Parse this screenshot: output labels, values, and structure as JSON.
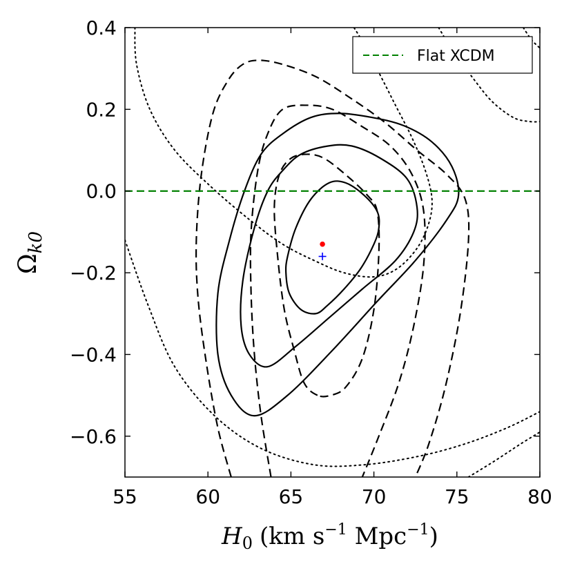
{
  "chart_data": {
    "type": "contour",
    "xlabel_main": "H",
    "xlabel_sub": "0",
    "xlabel_units": "(km s",
    "xlabel_units_exp1": "−1",
    "xlabel_units_mid": " Mpc",
    "xlabel_units_exp2": "−1",
    "xlabel_units_end": ")",
    "ylabel_main": "Ω",
    "ylabel_sub": "k0",
    "xlim": [
      55,
      80
    ],
    "ylim": [
      -0.7,
      0.4
    ],
    "xticks": [
      55,
      60,
      65,
      70,
      75,
      80
    ],
    "xtick_labels": [
      "55",
      "60",
      "65",
      "70",
      "75",
      "80"
    ],
    "yticks": [
      0.4,
      0.2,
      0.0,
      -0.2,
      -0.4,
      -0.6
    ],
    "ytick_labels": [
      "0.4",
      "0.2",
      "0.0",
      "−0.2",
      "−0.4",
      "−0.6"
    ],
    "legend": {
      "label": "Flat XCDM",
      "placement": "top-right",
      "color": "#008000"
    },
    "flat_line": {
      "y": 0.0,
      "color": "#008000",
      "style": "dashed"
    },
    "best_fit_points": [
      {
        "name": "red-dot",
        "x": 66.9,
        "y": -0.13,
        "color": "#ff0000",
        "marker": "dot"
      },
      {
        "name": "blue-plus",
        "x": 66.9,
        "y": -0.16,
        "color": "#0000ff",
        "marker": "plus"
      }
    ],
    "contours": [
      {
        "name": "solid-1sigma",
        "style": "solid",
        "closed": true,
        "points": [
          [
            66.5,
            -0.3
          ],
          [
            65.6,
            -0.29
          ],
          [
            64.9,
            -0.25
          ],
          [
            64.7,
            -0.2
          ],
          [
            64.8,
            -0.16
          ],
          [
            65.3,
            -0.09
          ],
          [
            66.2,
            -0.02
          ],
          [
            67.3,
            0.02
          ],
          [
            68.3,
            0.02
          ],
          [
            69.4,
            -0.01
          ],
          [
            70.2,
            -0.05
          ],
          [
            70.3,
            -0.09
          ],
          [
            70.0,
            -0.13
          ],
          [
            69.2,
            -0.19
          ],
          [
            68.2,
            -0.24
          ],
          [
            67.2,
            -0.28
          ]
        ]
      },
      {
        "name": "solid-2sigma",
        "style": "solid",
        "closed": true,
        "points": [
          [
            63.6,
            -0.43
          ],
          [
            62.5,
            -0.4
          ],
          [
            62.0,
            -0.33
          ],
          [
            62.1,
            -0.22
          ],
          [
            62.8,
            -0.09
          ],
          [
            63.6,
            0.0
          ],
          [
            64.5,
            0.05
          ],
          [
            65.6,
            0.09
          ],
          [
            67.2,
            0.11
          ],
          [
            68.7,
            0.11
          ],
          [
            70.4,
            0.08
          ],
          [
            72.0,
            0.03
          ],
          [
            72.6,
            -0.04
          ],
          [
            72.4,
            -0.1
          ],
          [
            71.3,
            -0.17
          ],
          [
            69.3,
            -0.24
          ],
          [
            67.3,
            -0.31
          ],
          [
            65.3,
            -0.38
          ]
        ]
      },
      {
        "name": "solid-3sigma",
        "style": "solid",
        "closed": true,
        "points": [
          [
            62.8,
            -0.55
          ],
          [
            61.4,
            -0.5
          ],
          [
            60.6,
            -0.4
          ],
          [
            60.6,
            -0.25
          ],
          [
            61.3,
            -0.12
          ],
          [
            62.2,
            0.0
          ],
          [
            63.2,
            0.09
          ],
          [
            64.5,
            0.14
          ],
          [
            66.2,
            0.18
          ],
          [
            67.9,
            0.19
          ],
          [
            69.9,
            0.18
          ],
          [
            71.8,
            0.16
          ],
          [
            73.5,
            0.12
          ],
          [
            74.7,
            0.06
          ],
          [
            75.1,
            -0.01
          ],
          [
            74.4,
            -0.07
          ],
          [
            72.5,
            -0.17
          ],
          [
            70.2,
            -0.27
          ],
          [
            67.5,
            -0.39
          ],
          [
            64.8,
            -0.5
          ]
        ]
      },
      {
        "name": "dashed-inner",
        "style": "dashed",
        "closed": true,
        "points": [
          [
            66.6,
            -0.5
          ],
          [
            65.8,
            -0.47
          ],
          [
            65.2,
            -0.39
          ],
          [
            64.6,
            -0.29
          ],
          [
            64.2,
            -0.16
          ],
          [
            64.0,
            -0.04
          ],
          [
            64.3,
            0.04
          ],
          [
            65.0,
            0.08
          ],
          [
            66.0,
            0.09
          ],
          [
            67.0,
            0.08
          ],
          [
            68.3,
            0.04
          ],
          [
            69.6,
            -0.01
          ],
          [
            70.2,
            -0.05
          ],
          [
            70.3,
            -0.15
          ],
          [
            70.0,
            -0.29
          ],
          [
            69.3,
            -0.41
          ],
          [
            68.3,
            -0.48
          ],
          [
            67.4,
            -0.5
          ]
        ]
      },
      {
        "name": "dashed-middle",
        "style": "dashed",
        "closed": false,
        "points": [
          [
            63.8,
            -0.7
          ],
          [
            63.2,
            -0.55
          ],
          [
            62.8,
            -0.4
          ],
          [
            62.6,
            -0.25
          ],
          [
            62.6,
            -0.1
          ],
          [
            63.0,
            0.05
          ],
          [
            63.6,
            0.14
          ],
          [
            64.5,
            0.2
          ],
          [
            66.0,
            0.21
          ],
          [
            67.5,
            0.2
          ],
          [
            69.2,
            0.16
          ],
          [
            71.0,
            0.11
          ],
          [
            72.3,
            0.04
          ],
          [
            73.0,
            -0.05
          ],
          [
            73.0,
            -0.18
          ],
          [
            72.4,
            -0.33
          ],
          [
            71.5,
            -0.47
          ],
          [
            70.2,
            -0.61
          ],
          [
            69.3,
            -0.7
          ]
        ]
      },
      {
        "name": "dashed-outer",
        "style": "dashed",
        "closed": false,
        "points": [
          [
            61.4,
            -0.7
          ],
          [
            60.6,
            -0.58
          ],
          [
            59.9,
            -0.42
          ],
          [
            59.4,
            -0.26
          ],
          [
            59.3,
            -0.12
          ],
          [
            59.6,
            0.04
          ],
          [
            60.3,
            0.19
          ],
          [
            61.2,
            0.27
          ],
          [
            62.1,
            0.31
          ],
          [
            63.1,
            0.32
          ],
          [
            64.5,
            0.31
          ],
          [
            66.5,
            0.28
          ],
          [
            68.5,
            0.23
          ],
          [
            70.6,
            0.17
          ],
          [
            72.6,
            0.1
          ],
          [
            74.4,
            0.04
          ],
          [
            75.5,
            -0.02
          ],
          [
            75.7,
            -0.12
          ],
          [
            75.2,
            -0.3
          ],
          [
            74.3,
            -0.48
          ],
          [
            73.3,
            -0.62
          ],
          [
            72.5,
            -0.7
          ]
        ]
      },
      {
        "name": "dotted-upper-arc",
        "style": "dotted",
        "closed": false,
        "points": [
          [
            55.6,
            0.4
          ],
          [
            55.7,
            0.31
          ],
          [
            56.5,
            0.2
          ],
          [
            58.0,
            0.1
          ],
          [
            60.2,
            0.01
          ],
          [
            62.5,
            -0.07
          ],
          [
            64.5,
            -0.13
          ],
          [
            66.4,
            -0.17
          ],
          [
            68.2,
            -0.2
          ],
          [
            70.0,
            -0.21
          ],
          [
            71.4,
            -0.19
          ],
          [
            72.6,
            -0.14
          ],
          [
            73.3,
            -0.08
          ],
          [
            73.5,
            -0.02
          ],
          [
            73.1,
            0.05
          ],
          [
            72.3,
            0.13
          ],
          [
            71.3,
            0.21
          ],
          [
            70.3,
            0.29
          ],
          [
            69.4,
            0.36
          ],
          [
            68.8,
            0.4
          ]
        ]
      },
      {
        "name": "dotted-top-right",
        "style": "dotted",
        "closed": false,
        "points": [
          [
            73.9,
            0.4
          ],
          [
            74.8,
            0.34
          ],
          [
            75.9,
            0.28
          ],
          [
            77.1,
            0.22
          ],
          [
            78.4,
            0.18
          ],
          [
            79.4,
            0.17
          ],
          [
            80.0,
            0.17
          ]
        ]
      },
      {
        "name": "dotted-top-right-corner",
        "style": "dotted",
        "closed": false,
        "points": [
          [
            79.0,
            0.4
          ],
          [
            79.5,
            0.37
          ],
          [
            80.0,
            0.35
          ]
        ]
      },
      {
        "name": "dotted-lower-arc",
        "style": "dotted",
        "closed": false,
        "points": [
          [
            55.0,
            -0.12
          ],
          [
            56.4,
            -0.28
          ],
          [
            58.0,
            -0.43
          ],
          [
            60.4,
            -0.55
          ],
          [
            63.2,
            -0.63
          ],
          [
            66.4,
            -0.67
          ],
          [
            69.4,
            -0.67
          ],
          [
            72.6,
            -0.65
          ],
          [
            75.4,
            -0.62
          ],
          [
            78.0,
            -0.58
          ],
          [
            80.0,
            -0.54
          ]
        ]
      },
      {
        "name": "dotted-bottom-right",
        "style": "dotted",
        "closed": false,
        "points": [
          [
            75.7,
            -0.7
          ],
          [
            77.3,
            -0.66
          ],
          [
            78.8,
            -0.62
          ],
          [
            80.0,
            -0.59
          ]
        ]
      }
    ]
  }
}
